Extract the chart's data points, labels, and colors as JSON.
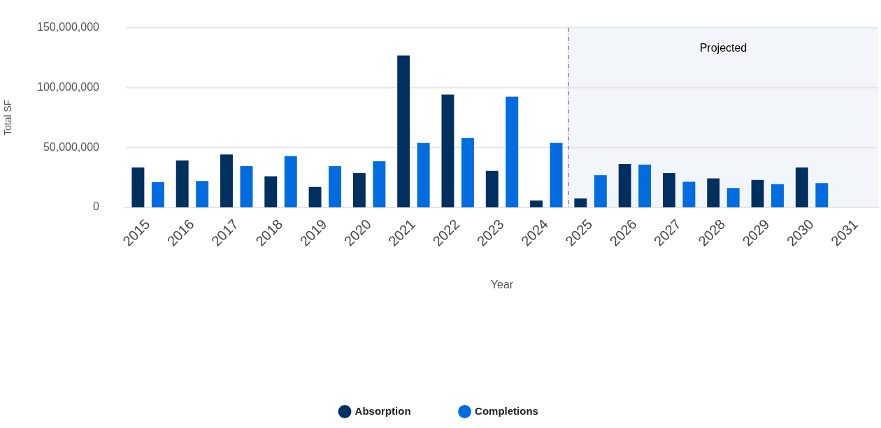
{
  "chart_data": {
    "type": "bar",
    "x": [
      2015,
      2016,
      2017,
      2018,
      2019,
      2020,
      2021,
      2022,
      2023,
      2024,
      2025,
      2026,
      2027,
      2028,
      2029,
      2030
    ],
    "xlim": [
      2014.5,
      2031.5
    ],
    "xticks": [
      2015,
      2016,
      2017,
      2018,
      2019,
      2020,
      2021,
      2022,
      2023,
      2024,
      2025,
      2026,
      2027,
      2028,
      2029,
      2030,
      2031
    ],
    "xlabel": "Year",
    "ylabel": "Total SF",
    "ylim": [
      0,
      150000000
    ],
    "yticks": [
      0,
      {
        "value": 50000000,
        "label": "50,000,000"
      },
      {
        "value": 100000000,
        "label": "100,000,000"
      },
      {
        "value": 150000000,
        "label": "150,000,000"
      }
    ],
    "grid": "y",
    "legend": "bottom",
    "series": [
      {
        "name": "Absorption",
        "color": "#00305f",
        "values": [
          34000000,
          39800000,
          44700000,
          26500000,
          17700000,
          29200000,
          127400000,
          94700000,
          31000000,
          6200000,
          8000000,
          36700000,
          29200000,
          24800000,
          23500000,
          34000000
        ]
      },
      {
        "name": "Completions",
        "color": "#006ce0",
        "values": [
          21700000,
          22600000,
          35000000,
          43400000,
          35000000,
          39000000,
          54400000,
          58400000,
          93000000,
          54400000,
          27400000,
          36300000,
          22000000,
          16800000,
          19900000,
          20800000
        ]
      }
    ],
    "ref_lines": [
      {
        "axis": "x",
        "value": 2024.5,
        "color": "#444444",
        "line_style": "dashed"
      }
    ],
    "bands": [
      {
        "axis": "x",
        "from": 2024.5,
        "to": 2031.5,
        "label": "Projected",
        "color": "#f2f5fa"
      }
    ]
  }
}
